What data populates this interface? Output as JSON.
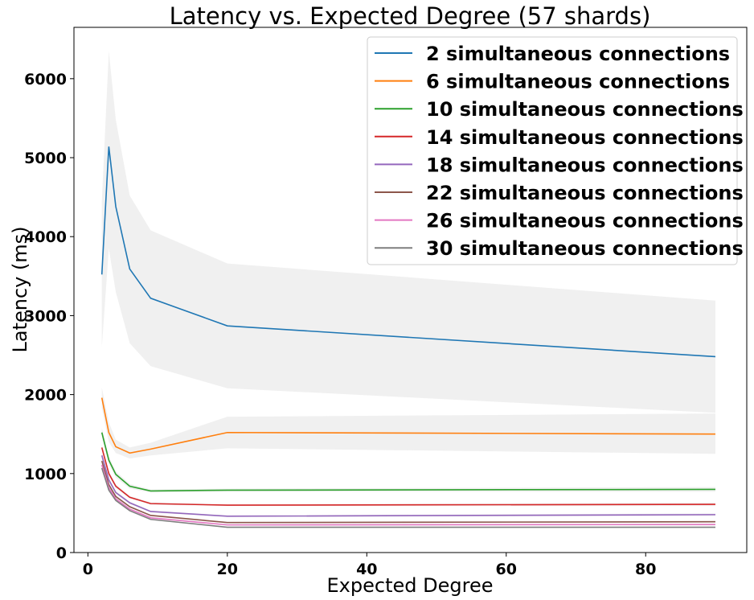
{
  "chart_data": {
    "type": "line",
    "title": "Latency vs. Expected Degree (57 shards)",
    "xlabel": "Expected Degree",
    "ylabel": "Latency (ms)",
    "xlim": [
      -2,
      94.5
    ],
    "ylim": [
      0,
      6650
    ],
    "xticks": [
      "0",
      "20",
      "40",
      "60",
      "80"
    ],
    "xtick_values": [
      0,
      20,
      40,
      60,
      80
    ],
    "yticks": [
      "0",
      "1000",
      "2000",
      "3000",
      "4000",
      "5000",
      "6000"
    ],
    "ytick_values": [
      0,
      1000,
      2000,
      3000,
      4000,
      5000,
      6000
    ],
    "legend_position": "top-right",
    "grid": false,
    "x": [
      2,
      3,
      4,
      6,
      9,
      20,
      90
    ],
    "series": [
      {
        "name": "2 simultaneous connections",
        "color": "#1f77b4",
        "values": [
          3520,
          5140,
          4380,
          3590,
          3220,
          2870,
          2480
        ],
        "lower": [
          2600,
          3850,
          3300,
          2650,
          2360,
          2080,
          1770
        ],
        "upper": [
          4450,
          6350,
          5480,
          4520,
          4080,
          3660,
          3190
        ]
      },
      {
        "name": "6 simultaneous connections",
        "color": "#ff7f0e",
        "values": [
          1960,
          1520,
          1340,
          1260,
          1310,
          1520,
          1500
        ],
        "lower": [
          1830,
          1400,
          1260,
          1190,
          1230,
          1320,
          1250
        ],
        "upper": [
          2090,
          1650,
          1430,
          1330,
          1390,
          1720,
          1760
        ]
      },
      {
        "name": "10 simultaneous connections",
        "color": "#2ca02c",
        "values": [
          1520,
          1170,
          990,
          840,
          780,
          790,
          800
        ],
        "lower": [
          1460,
          1120,
          950,
          810,
          760,
          770,
          770
        ],
        "upper": [
          1580,
          1220,
          1030,
          870,
          800,
          810,
          830
        ]
      },
      {
        "name": "14 simultaneous connections",
        "color": "#d62728",
        "values": [
          1330,
          1000,
          840,
          700,
          620,
          600,
          610
        ],
        "lower": [
          1290,
          970,
          815,
          685,
          605,
          590,
          590
        ],
        "upper": [
          1370,
          1030,
          865,
          715,
          635,
          610,
          630
        ]
      },
      {
        "name": "18 simultaneous connections",
        "color": "#9467bd",
        "values": [
          1230,
          920,
          760,
          630,
          520,
          460,
          480
        ],
        "lower": [
          1190,
          895,
          740,
          615,
          508,
          450,
          465
        ],
        "upper": [
          1270,
          945,
          780,
          645,
          532,
          470,
          495
        ]
      },
      {
        "name": "22 simultaneous connections",
        "color": "#8c564b",
        "values": [
          1160,
          860,
          710,
          580,
          470,
          380,
          390
        ],
        "lower": [
          1125,
          840,
          695,
          568,
          460,
          372,
          378
        ],
        "upper": [
          1195,
          880,
          725,
          592,
          480,
          388,
          402
        ]
      },
      {
        "name": "26 simultaneous connections",
        "color": "#e377c2",
        "values": [
          1110,
          820,
          680,
          550,
          440,
          350,
          355
        ],
        "lower": [
          1080,
          802,
          666,
          540,
          432,
          343,
          345
        ],
        "upper": [
          1140,
          838,
          694,
          560,
          448,
          357,
          365
        ]
      },
      {
        "name": "30 simultaneous connections",
        "color": "#7f7f7f",
        "values": [
          1070,
          790,
          660,
          530,
          420,
          320,
          320
        ],
        "lower": [
          1042,
          774,
          647,
          521,
          413,
          314,
          312
        ],
        "upper": [
          1098,
          806,
          673,
          539,
          427,
          326,
          328
        ]
      }
    ]
  }
}
